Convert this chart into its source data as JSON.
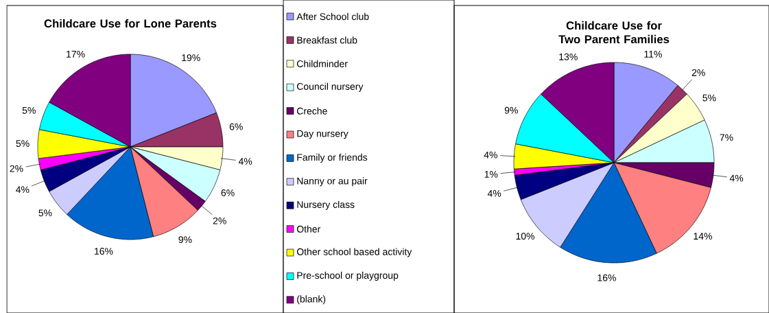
{
  "chart_data": [
    {
      "type": "pie",
      "title": "Childcare Use for Lone Parents",
      "legend": "right",
      "categories": [
        "After School club",
        "Breakfast club",
        "Childminder",
        "Council nursery",
        "Creche",
        "Day nursery",
        "Family or friends",
        "Nanny or au pair",
        "Nursery class",
        "Other",
        "Other school based activity",
        "Pre-school or playgroup",
        "(blank)"
      ],
      "values": [
        19,
        6,
        4,
        6,
        2,
        9,
        16,
        5,
        4,
        2,
        5,
        5,
        17
      ],
      "value_labels": [
        "19%",
        "6%",
        "4%",
        "6%",
        "2%",
        "9%",
        "16%",
        "5%",
        "4%",
        "2%",
        "5%",
        "5%",
        "17%"
      ],
      "colors": [
        "#9999ff",
        "#993366",
        "#ffffcc",
        "#ccffff",
        "#660066",
        "#ff8080",
        "#0066cc",
        "#ccccff",
        "#000080",
        "#ff00ff",
        "#ffff00",
        "#00ffff",
        "#800080"
      ]
    },
    {
      "type": "pie",
      "title": "Childcare Use for Two Parent Families",
      "categories": [
        null,
        null,
        null,
        null,
        null,
        null,
        null,
        null,
        null,
        null,
        null,
        null,
        null
      ],
      "values": [
        11,
        2,
        5,
        7,
        4,
        14,
        16,
        10,
        4,
        1,
        4,
        9,
        13
      ],
      "value_labels": [
        "11%",
        "2%",
        "5%",
        "7%",
        "4%",
        "14%",
        "16%",
        "10%",
        "4%",
        "1%",
        "4%",
        "9%",
        "13%"
      ],
      "colors": [
        "#9999ff",
        "#993366",
        "#ffffcc",
        "#ccffff",
        "#660066",
        "#ff8080",
        "#0066cc",
        "#ccccff",
        "#000080",
        "#ff00ff",
        "#ffff00",
        "#00ffff",
        "#800080"
      ]
    }
  ]
}
